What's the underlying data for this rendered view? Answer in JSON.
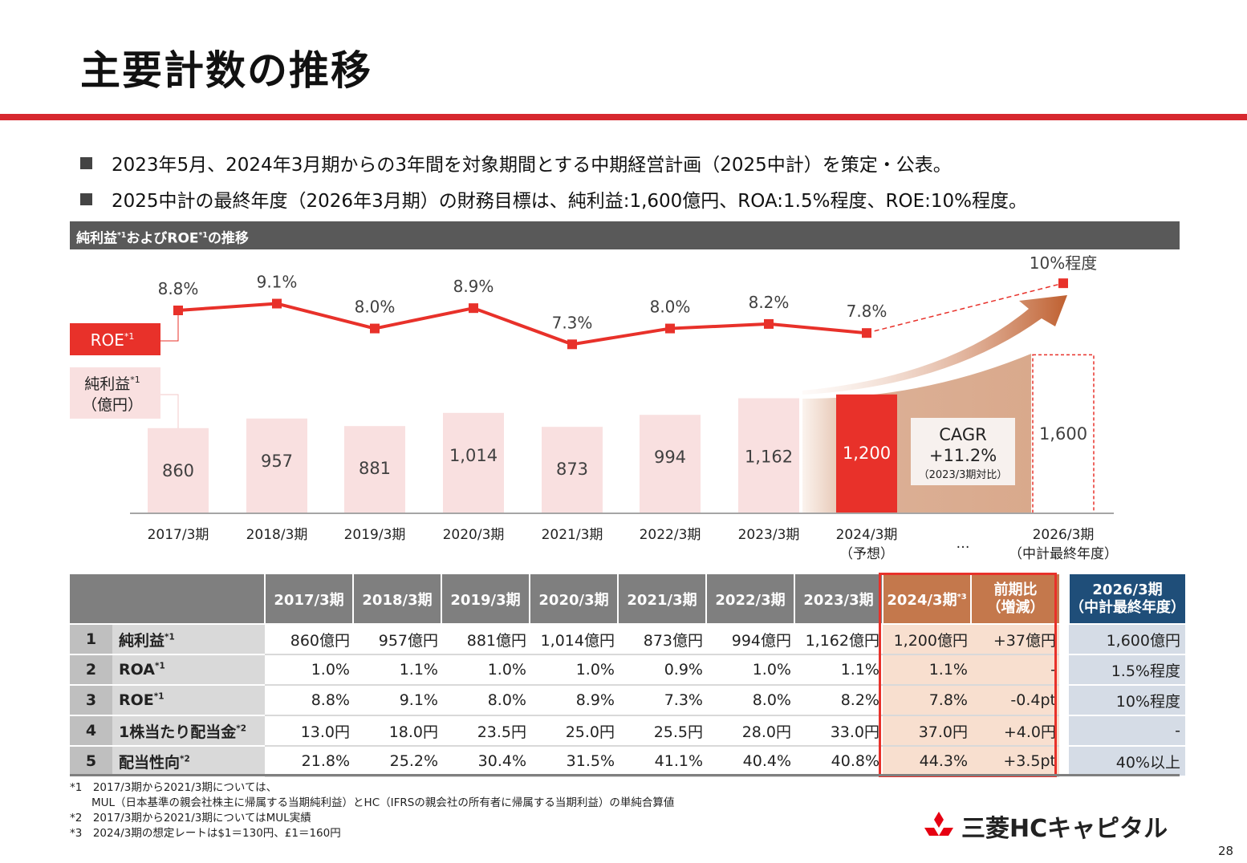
{
  "title": "主要計数の推移",
  "bullets": [
    "2023年5月、2024年3月期からの3年間を対象期間とする中期経営計画（2025中計）を策定・公表。",
    "2025中計の最終年度（2026年3月期）の財務目標は、純利益:1,600億円、ROA:1.5%程度、ROE:10%程度。"
  ],
  "section_header": {
    "text": "純利益",
    "sup1": "*1",
    "text2": "およびROE",
    "sup2": "*1",
    "text3": "の推移"
  },
  "colors": {
    "accent_red": "#e8312a",
    "band_red": "#d7282f",
    "bar_pink": "#f9e0e0",
    "cagr_brown": "#d9a98c",
    "plan_blue": "#1f4e79"
  },
  "chart_data": {
    "type": "bar+line",
    "categories": [
      "2017/3期",
      "2018/3期",
      "2019/3期",
      "2020/3期",
      "2021/3期",
      "2022/3期",
      "2023/3期",
      "2024/3期",
      "…",
      "2026/3期"
    ],
    "category_sublabels": [
      "",
      "",
      "",
      "",
      "",
      "",
      "",
      "（予想）",
      "",
      "（中計最終年度）"
    ],
    "bar_series": {
      "name": "純利益",
      "name_sup": "*1",
      "unit": "（億円）",
      "values": [
        860,
        957,
        881,
        1014,
        873,
        994,
        1162,
        1200,
        null,
        1600
      ],
      "labels": [
        "860",
        "957",
        "881",
        "1,014",
        "873",
        "994",
        "1,162",
        "1,200",
        "",
        "1,600"
      ]
    },
    "line_series": {
      "name": "ROE",
      "name_sup": "*1",
      "values": [
        8.8,
        9.1,
        8.0,
        8.9,
        7.3,
        8.0,
        8.2,
        7.8,
        null,
        10.0
      ],
      "labels": [
        "8.8%",
        "9.1%",
        "8.0%",
        "8.9%",
        "7.3%",
        "8.0%",
        "8.2%",
        "7.8%",
        "",
        "10%程度"
      ]
    },
    "annotation": {
      "line1": "CAGR",
      "line2": "+11.2%",
      "line3": "（2023/3期対比）"
    }
  },
  "table": {
    "headers": [
      "2017/3期",
      "2018/3期",
      "2019/3期",
      "2020/3期",
      "2021/3期",
      "2022/3期",
      "2023/3期"
    ],
    "header_2024": {
      "text": "2024/3期",
      "sup": "*3"
    },
    "header_diff": [
      "前期比",
      "（増減）"
    ],
    "header_2026": [
      "2026/3期",
      "（中計最終年度）"
    ],
    "rows": [
      {
        "num": "1",
        "label": "純利益",
        "sup": "*1",
        "values": [
          "860億円",
          "957億円",
          "881億円",
          "1,014億円",
          "873億円",
          "994億円",
          "1,162億円"
        ],
        "v2024": "1,200億円",
        "diff": "+37億円",
        "v2026": "1,600億円"
      },
      {
        "num": "2",
        "label": "ROA",
        "sup": "*1",
        "values": [
          "1.0%",
          "1.1%",
          "1.0%",
          "1.0%",
          "0.9%",
          "1.0%",
          "1.1%"
        ],
        "v2024": "1.1%",
        "diff": "-",
        "v2026": "1.5%程度"
      },
      {
        "num": "3",
        "label": "ROE",
        "sup": "*1",
        "values": [
          "8.8%",
          "9.1%",
          "8.0%",
          "8.9%",
          "7.3%",
          "8.0%",
          "8.2%"
        ],
        "v2024": "7.8%",
        "diff": "-0.4pt",
        "v2026": "10%程度"
      },
      {
        "num": "4",
        "label": "1株当たり配当金",
        "sup": "*2",
        "values": [
          "13.0円",
          "18.0円",
          "23.5円",
          "25.0円",
          "25.5円",
          "28.0円",
          "33.0円"
        ],
        "v2024": "37.0円",
        "diff": "+4.0円",
        "v2026": "-"
      },
      {
        "num": "5",
        "label": "配当性向",
        "sup": "*2",
        "values": [
          "21.8%",
          "25.2%",
          "30.4%",
          "31.5%",
          "41.1%",
          "40.4%",
          "40.8%"
        ],
        "v2024": "44.3%",
        "diff": "+3.5pt",
        "v2026": "40%以上"
      }
    ]
  },
  "footnotes": [
    "*1　2017/3期から2021/3期については、",
    "　　MUL（日本基準の親会社株主に帰属する当期純利益）とHC（IFRSの親会社の所有者に帰属する当期利益）の単純合算値",
    "*2　2017/3期から2021/3期についてはMUL実績",
    "*3　2024/3期の想定レートは$1＝130円、£1＝160円"
  ],
  "logo_text": "三菱HCキャピタル",
  "page_number": "28"
}
